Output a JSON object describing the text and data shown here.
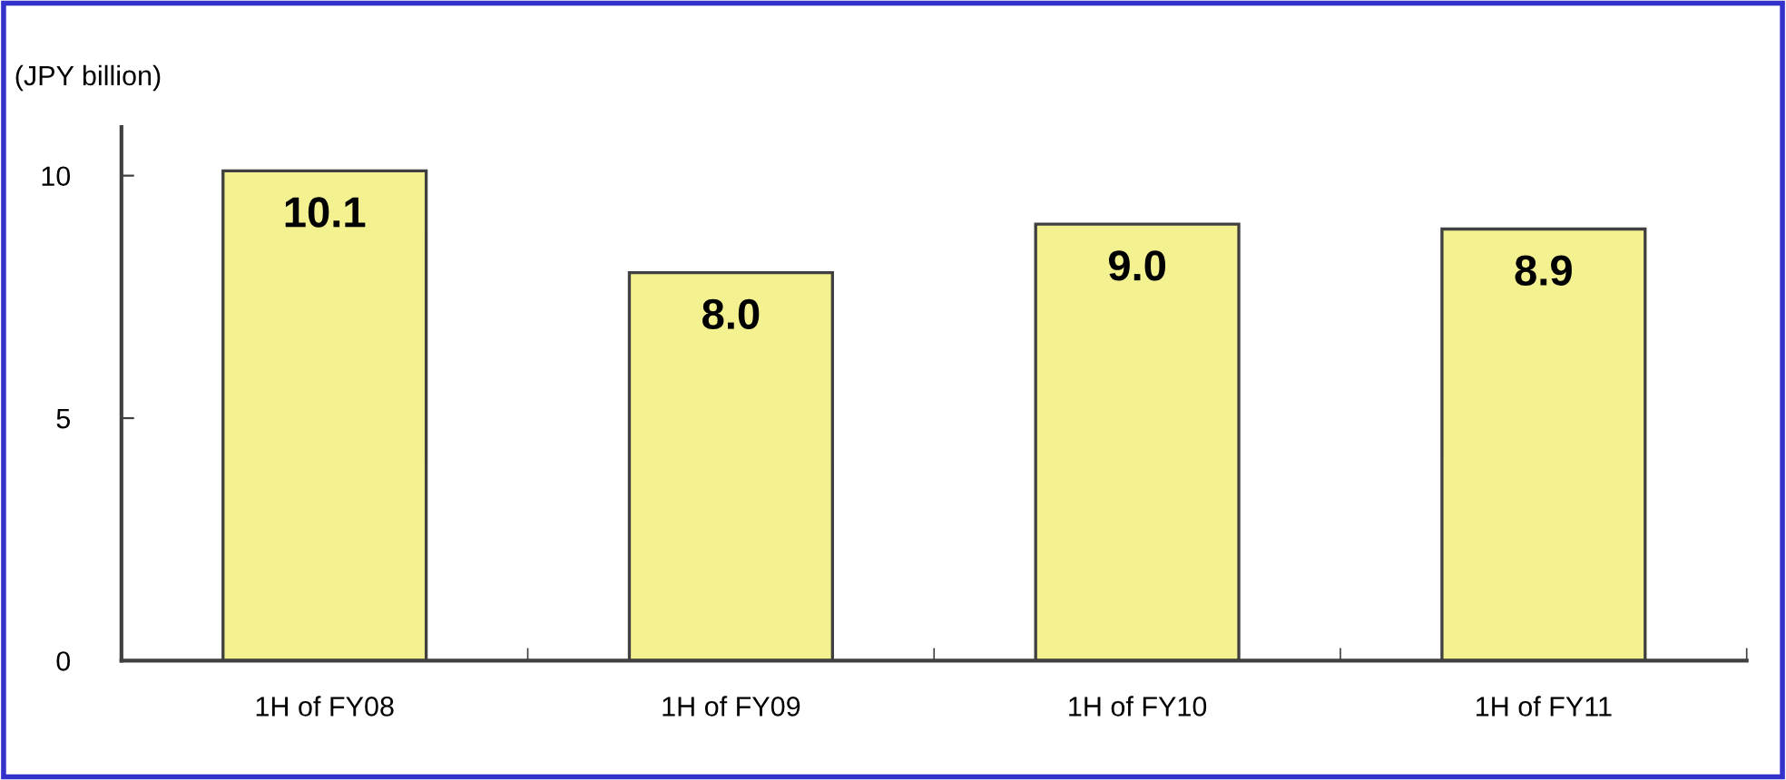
{
  "chart_data": {
    "type": "bar",
    "ylabel": "(JPY billion)",
    "categories": [
      "1H of FY08",
      "1H of FY09",
      "1H of FY10",
      "1H of FY11"
    ],
    "values": [
      10.1,
      8.0,
      9.0,
      8.9
    ],
    "value_labels": [
      "10.1",
      "8.0",
      "9.0",
      "8.9"
    ],
    "color": "#f4f290",
    "ylim": [
      0,
      11
    ],
    "yticks": [
      0,
      5,
      10
    ],
    "grid": false,
    "legend": false
  }
}
